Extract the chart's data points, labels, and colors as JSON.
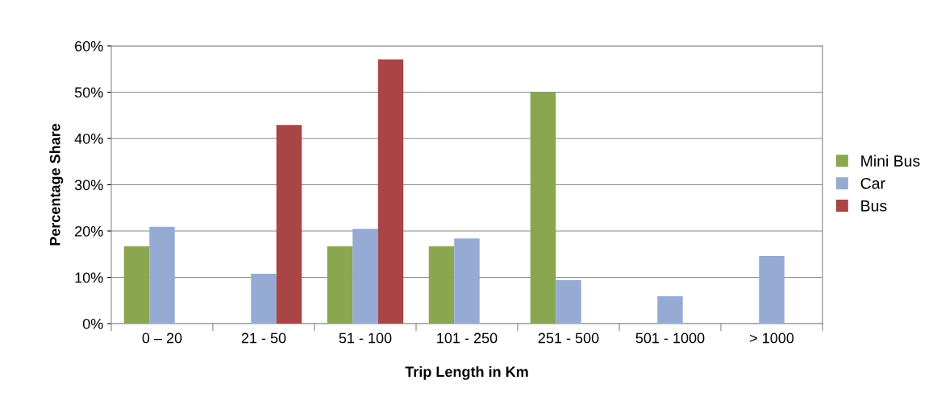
{
  "chart_data": {
    "type": "bar",
    "xlabel": "Trip Length in Km",
    "ylabel": "Percentage Share",
    "categories": [
      "0 – 20",
      "21 - 50",
      "51 - 100",
      "101 - 250",
      "251 - 500",
      "501 - 1000",
      "> 1000"
    ],
    "series": [
      {
        "name": "Mini Bus",
        "color": "#8aa64f",
        "values": [
          16.7,
          null,
          16.7,
          16.7,
          50,
          null,
          null
        ]
      },
      {
        "name": "Car",
        "color": "#95abd3",
        "values": [
          20.9,
          10.8,
          20.5,
          18.4,
          9.4,
          5.9,
          14.6
        ]
      },
      {
        "name": "Bus",
        "color": "#a94545",
        "values": [
          null,
          42.9,
          57.1,
          null,
          null,
          null,
          null
        ]
      }
    ],
    "ylim": [
      0,
      60
    ],
    "yticks": [
      {
        "value": 0,
        "label": "0%"
      },
      {
        "value": 10,
        "label": "10%"
      },
      {
        "value": 20,
        "label": "20%"
      },
      {
        "value": 30,
        "label": "30%"
      },
      {
        "value": 40,
        "label": "40%"
      },
      {
        "value": 50,
        "label": "50%"
      },
      {
        "value": 60,
        "label": "60%"
      }
    ],
    "grid": "y",
    "legend": "right"
  }
}
